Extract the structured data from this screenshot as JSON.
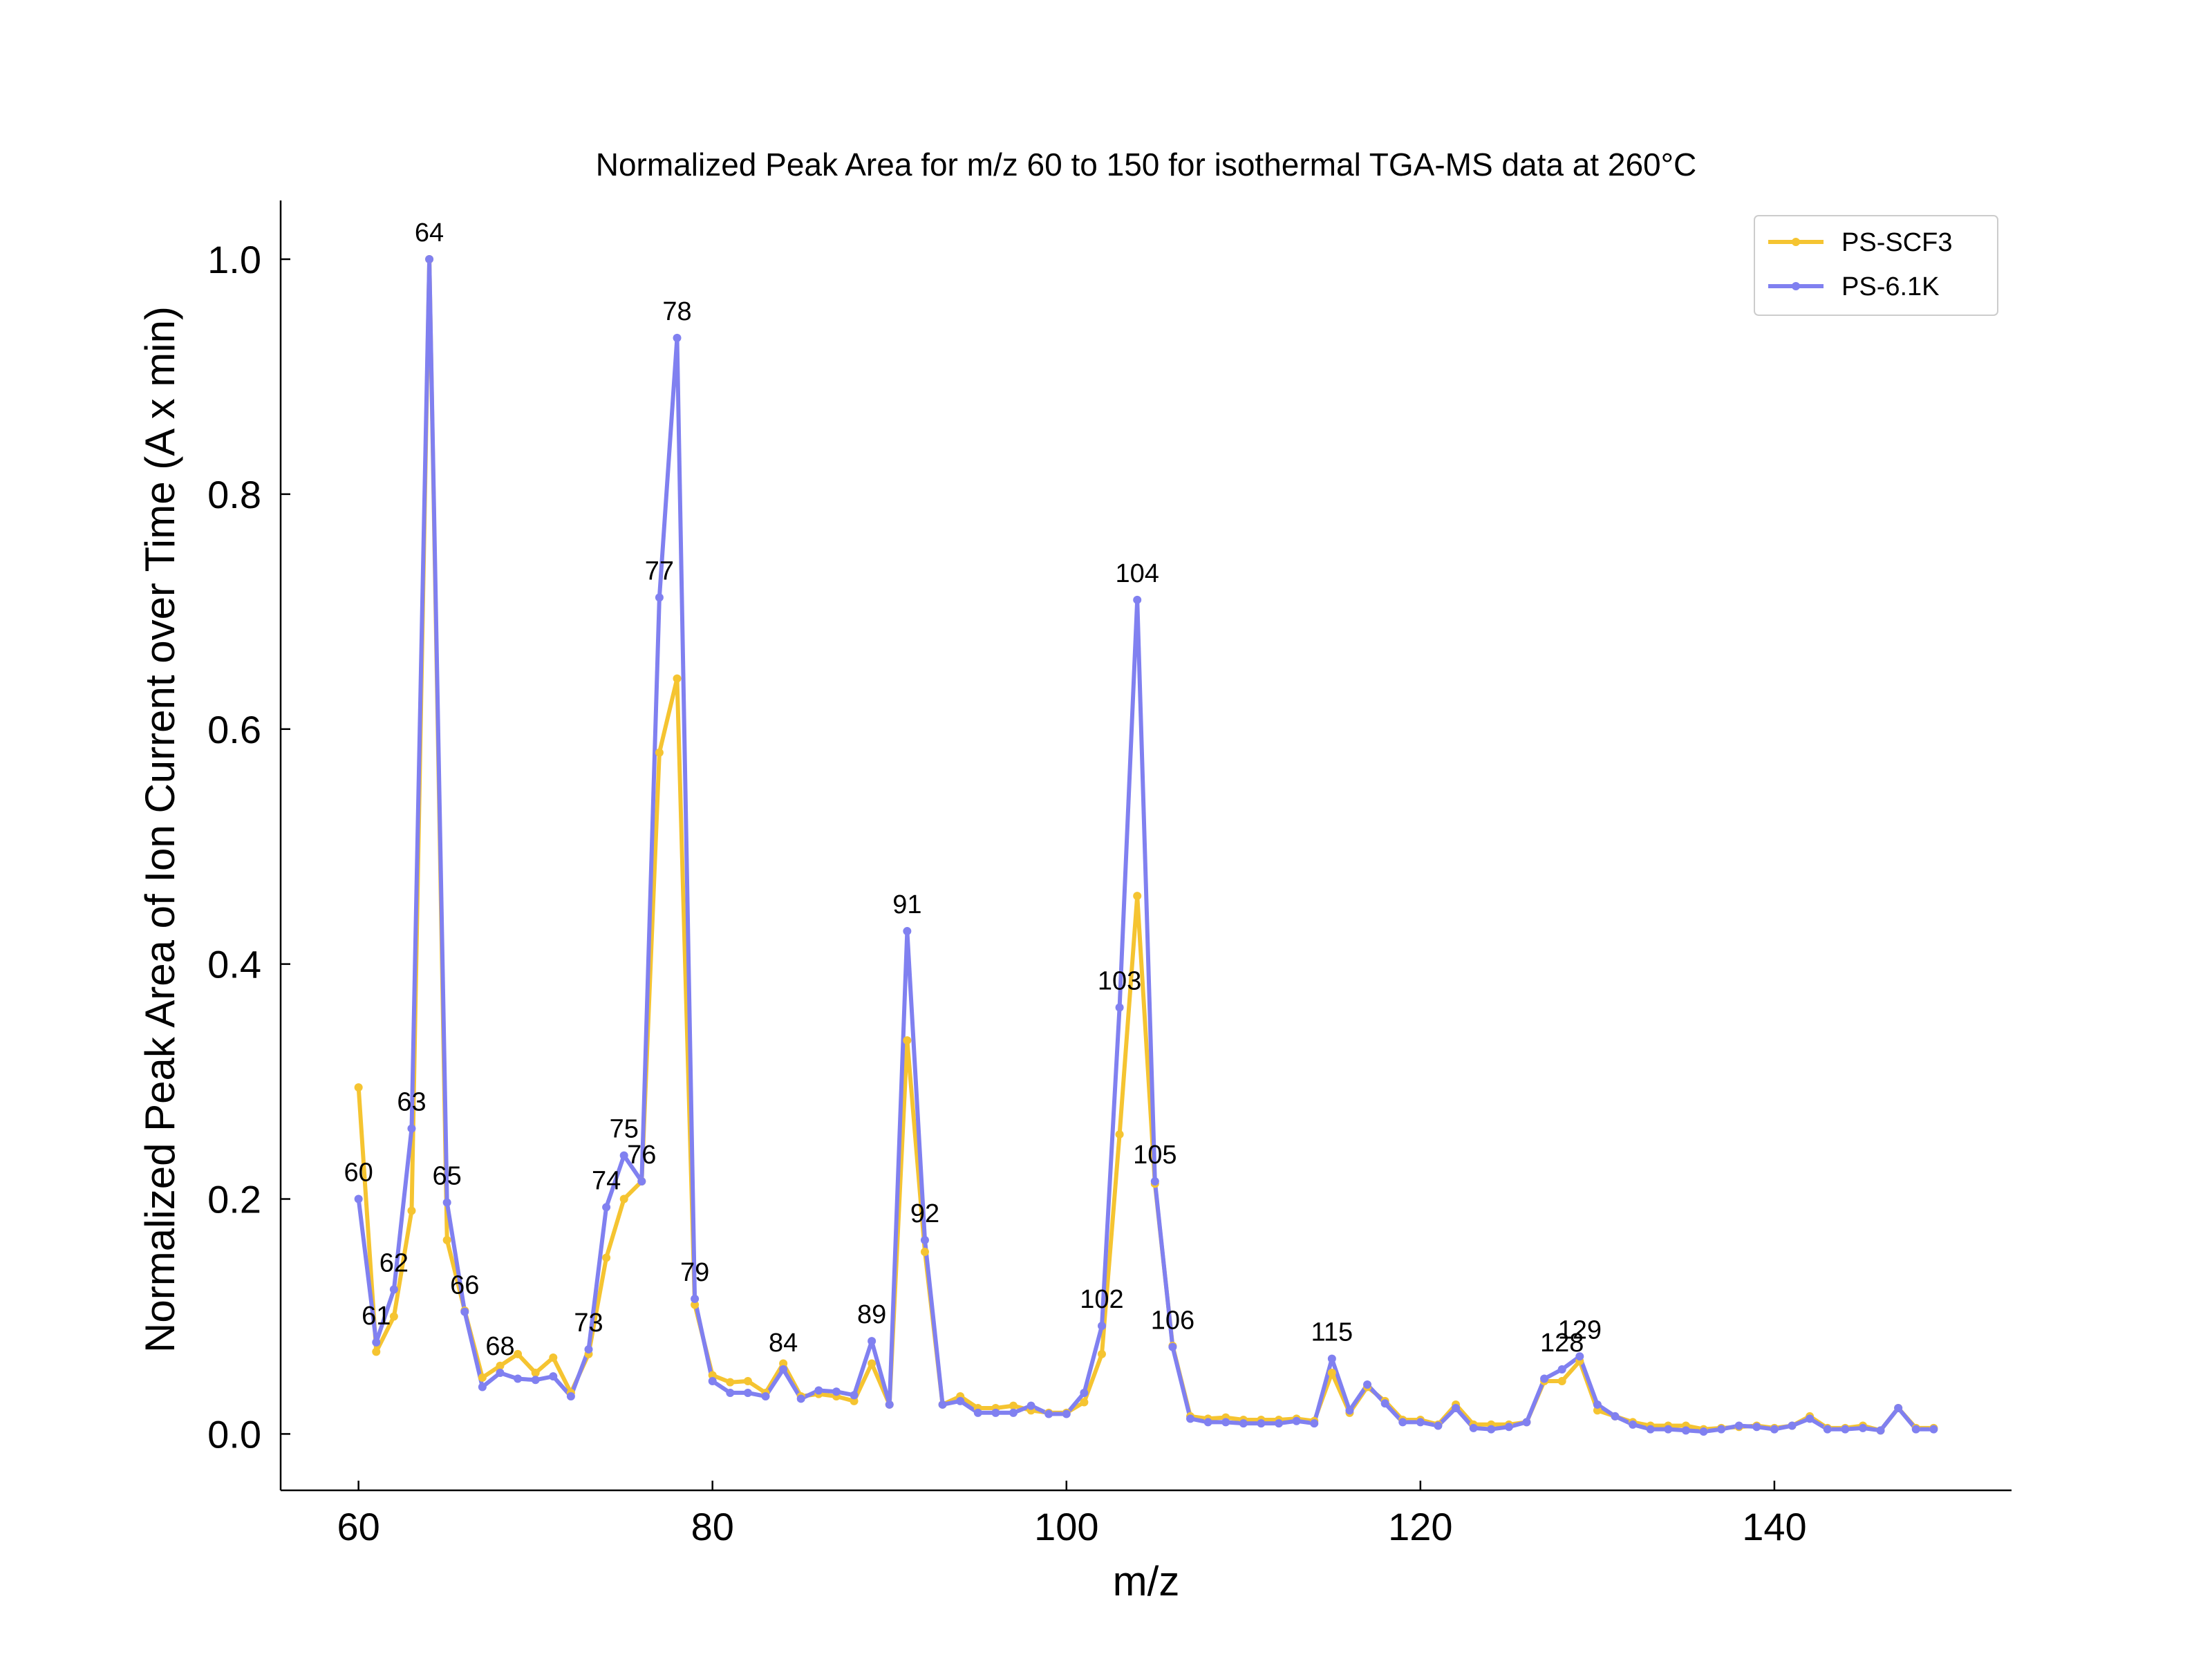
{
  "chart_data": {
    "type": "line",
    "title": "Normalized Peak Area for m/z 60 to 150 for isothermal TGA-MS data at 260°C",
    "xlabel": "m/z",
    "ylabel": "Normalized Peak Area of Ion Current over Time (A x min)",
    "xlim": [
      55.6,
      153.4
    ],
    "ylim": [
      -0.048,
      1.05
    ],
    "xticks": [
      60,
      80,
      100,
      120,
      140
    ],
    "yticks": [
      0.0,
      0.2,
      0.4,
      0.6,
      0.8,
      1.0
    ],
    "xtick_labels": [
      "60",
      "80",
      "100",
      "120",
      "140"
    ],
    "ytick_labels": [
      "0.0",
      "0.2",
      "0.4",
      "0.6",
      "0.8",
      "1.0"
    ],
    "grid": false,
    "legend_position": "top-right",
    "x": [
      60,
      61,
      62,
      63,
      64,
      65,
      66,
      67,
      68,
      69,
      70,
      71,
      72,
      73,
      74,
      75,
      76,
      77,
      78,
      79,
      80,
      81,
      82,
      83,
      84,
      85,
      86,
      87,
      88,
      89,
      90,
      91,
      92,
      93,
      94,
      95,
      96,
      97,
      98,
      99,
      100,
      101,
      102,
      103,
      104,
      105,
      106,
      107,
      108,
      109,
      110,
      111,
      112,
      113,
      114,
      115,
      116,
      117,
      118,
      119,
      120,
      121,
      122,
      123,
      124,
      125,
      126,
      127,
      128,
      129,
      130,
      131,
      132,
      133,
      134,
      135,
      136,
      137,
      138,
      139,
      140,
      141,
      142,
      143,
      144,
      145,
      146,
      147,
      148,
      149
    ],
    "series": [
      {
        "name": "PS-SCF3",
        "color": "#F5C431",
        "values": [
          0.295,
          0.07,
          0.1,
          0.19,
          1.0,
          0.165,
          0.105,
          0.048,
          0.058,
          0.068,
          0.052,
          0.065,
          0.035,
          0.068,
          0.15,
          0.2,
          0.215,
          0.58,
          0.643,
          0.11,
          0.05,
          0.044,
          0.045,
          0.035,
          0.06,
          0.032,
          0.034,
          0.032,
          0.028,
          0.06,
          0.025,
          0.335,
          0.155,
          0.025,
          0.032,
          0.022,
          0.022,
          0.024,
          0.02,
          0.018,
          0.018,
          0.027,
          0.068,
          0.255,
          0.458,
          0.213,
          0.075,
          0.015,
          0.013,
          0.014,
          0.012,
          0.012,
          0.012,
          0.013,
          0.011,
          0.052,
          0.018,
          0.04,
          0.028,
          0.012,
          0.012,
          0.008,
          0.025,
          0.008,
          0.008,
          0.008,
          0.01,
          0.045,
          0.045,
          0.062,
          0.02,
          0.015,
          0.01,
          0.007,
          0.007,
          0.007,
          0.004,
          0.005,
          0.006,
          0.007,
          0.005,
          0.007,
          0.015,
          0.005,
          0.005,
          0.007,
          0.003,
          0.022,
          0.005,
          0.005
        ]
      },
      {
        "name": "PS-6.1K",
        "color": "#8080F0",
        "values": [
          0.2,
          0.078,
          0.123,
          0.26,
          1.0,
          0.197,
          0.104,
          0.04,
          0.052,
          0.047,
          0.046,
          0.049,
          0.032,
          0.072,
          0.193,
          0.237,
          0.215,
          0.712,
          0.933,
          0.115,
          0.045,
          0.035,
          0.035,
          0.032,
          0.055,
          0.03,
          0.037,
          0.036,
          0.033,
          0.079,
          0.025,
          0.428,
          0.165,
          0.025,
          0.028,
          0.018,
          0.018,
          0.018,
          0.024,
          0.017,
          0.017,
          0.035,
          0.092,
          0.363,
          0.71,
          0.215,
          0.074,
          0.013,
          0.01,
          0.01,
          0.009,
          0.009,
          0.009,
          0.011,
          0.009,
          0.064,
          0.02,
          0.042,
          0.026,
          0.01,
          0.01,
          0.007,
          0.022,
          0.005,
          0.004,
          0.006,
          0.01,
          0.047,
          0.055,
          0.066,
          0.025,
          0.015,
          0.008,
          0.004,
          0.004,
          0.003,
          0.002,
          0.004,
          0.007,
          0.006,
          0.004,
          0.007,
          0.013,
          0.004,
          0.004,
          0.005,
          0.003,
          0.022,
          0.004,
          0.004
        ]
      }
    ],
    "annotations": [
      {
        "text": "60",
        "x": 60,
        "y": 0.2
      },
      {
        "text": "61",
        "x": 61,
        "y": 0.078
      },
      {
        "text": "62",
        "x": 62,
        "y": 0.123
      },
      {
        "text": "63",
        "x": 63,
        "y": 0.26
      },
      {
        "text": "64",
        "x": 64,
        "y": 1.0
      },
      {
        "text": "65",
        "x": 65,
        "y": 0.197
      },
      {
        "text": "66",
        "x": 66,
        "y": 0.104
      },
      {
        "text": "68",
        "x": 68,
        "y": 0.052
      },
      {
        "text": "73",
        "x": 73,
        "y": 0.072
      },
      {
        "text": "74",
        "x": 74,
        "y": 0.193
      },
      {
        "text": "75",
        "x": 75,
        "y": 0.237
      },
      {
        "text": "76",
        "x": 76,
        "y": 0.215
      },
      {
        "text": "77",
        "x": 77,
        "y": 0.712
      },
      {
        "text": "78",
        "x": 78,
        "y": 0.933
      },
      {
        "text": "79",
        "x": 79,
        "y": 0.115
      },
      {
        "text": "84",
        "x": 84,
        "y": 0.055
      },
      {
        "text": "89",
        "x": 89,
        "y": 0.079
      },
      {
        "text": "91",
        "x": 91,
        "y": 0.428
      },
      {
        "text": "92",
        "x": 92,
        "y": 0.165
      },
      {
        "text": "102",
        "x": 102,
        "y": 0.092
      },
      {
        "text": "103",
        "x": 103,
        "y": 0.363
      },
      {
        "text": "104",
        "x": 104,
        "y": 0.71
      },
      {
        "text": "105",
        "x": 105,
        "y": 0.215
      },
      {
        "text": "106",
        "x": 106,
        "y": 0.074
      },
      {
        "text": "115",
        "x": 115,
        "y": 0.064
      },
      {
        "text": "128",
        "x": 128,
        "y": 0.055
      },
      {
        "text": "129",
        "x": 129,
        "y": 0.066
      }
    ]
  }
}
